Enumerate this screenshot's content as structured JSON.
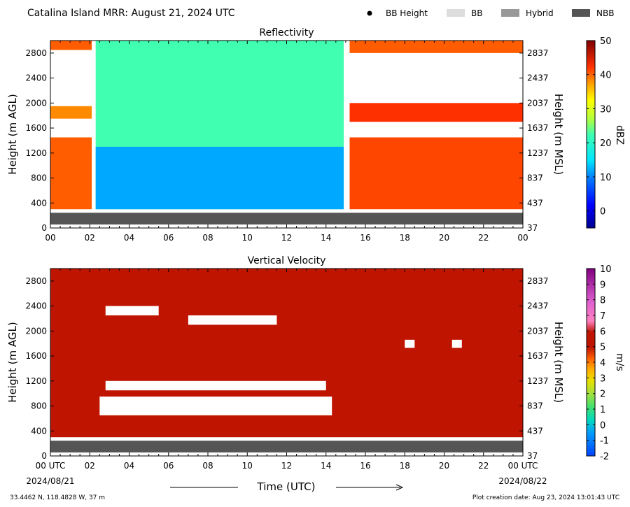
{
  "header": {
    "title": "Catalina Island MRR:  August 21, 2024 UTC",
    "legend": [
      {
        "name": "BB Height",
        "marker": "dot",
        "color": "#000000"
      },
      {
        "name": "BB",
        "marker": "swatch",
        "color": "#dddddd"
      },
      {
        "name": "Hybrid",
        "marker": "swatch",
        "color": "#999999"
      },
      {
        "name": "NBB",
        "marker": "swatch",
        "color": "#555555"
      }
    ]
  },
  "footer": {
    "coords": "33.4462 N, 118.4828 W, 37 m",
    "creation": "Plot creation date: Aug 23, 2024 13:01:43 UTC",
    "start_date": "2024/08/21",
    "end_date": "2024/08/22",
    "xlabel": "Time (UTC)"
  },
  "colors": {
    "nbb_band": "#555555",
    "vv_fill": "#bf1400"
  },
  "chart_data": [
    {
      "type": "heatmap",
      "title": "Reflectivity",
      "xlabel": "Time (UTC)",
      "ylabel": "Height (m AGL)",
      "ylabel_right": "Height (m MSL)",
      "xlim": [
        0,
        24
      ],
      "ylim": [
        0,
        3000
      ],
      "xticks": [
        "00",
        "02",
        "04",
        "06",
        "08",
        "10",
        "12",
        "14",
        "16",
        "18",
        "20",
        "22",
        "00"
      ],
      "yticks": [
        0,
        400,
        800,
        1200,
        1600,
        2000,
        2400,
        2800
      ],
      "yticks_right": [
        37,
        437,
        837,
        1237,
        1637,
        2037,
        2437,
        2837
      ],
      "colorbar": {
        "label": "dBZ",
        "min": -5,
        "max": 50,
        "ticks": [
          0,
          10,
          20,
          30,
          40,
          50
        ]
      },
      "bright_band_type": "NBB",
      "bright_band_height_range": [
        0,
        300
      ],
      "regions": [
        {
          "t": [
            0,
            2.1
          ],
          "z": [
            300,
            1450
          ],
          "dbz": 40
        },
        {
          "t": [
            0,
            2.1
          ],
          "z": [
            1750,
            1950
          ],
          "dbz": 38
        },
        {
          "t": [
            0,
            2.1
          ],
          "z": [
            2850,
            3000
          ],
          "dbz": 40
        },
        {
          "t": [
            2.3,
            14.9
          ],
          "z": [
            300,
            3000
          ],
          "dbz": 22
        },
        {
          "t": [
            2.3,
            14.9
          ],
          "z": [
            300,
            1300
          ],
          "dbz": 12
        },
        {
          "t": [
            15.2,
            24
          ],
          "z": [
            300,
            1450
          ],
          "dbz": 41
        },
        {
          "t": [
            15.2,
            24
          ],
          "z": [
            1700,
            2000
          ],
          "dbz": 42
        },
        {
          "t": [
            15.2,
            24
          ],
          "z": [
            2800,
            3000
          ],
          "dbz": 40
        }
      ]
    },
    {
      "type": "heatmap",
      "title": "Vertical Velocity",
      "xlabel": "Time (UTC)",
      "ylabel": "Height (m AGL)",
      "ylabel_right": "Height (m MSL)",
      "xlim": [
        0,
        24
      ],
      "ylim": [
        0,
        3000
      ],
      "xticks": [
        "00 UTC",
        "02",
        "04",
        "06",
        "08",
        "10",
        "12",
        "14",
        "16",
        "18",
        "20",
        "22",
        "00 UTC"
      ],
      "yticks": [
        0,
        400,
        800,
        1200,
        1600,
        2000,
        2400,
        2800
      ],
      "yticks_right": [
        37,
        437,
        837,
        1237,
        1637,
        2037,
        2437,
        2837
      ],
      "colorbar": {
        "label": "m/s",
        "min": -2,
        "max": 10,
        "ticks": [
          -2,
          -1,
          0,
          1,
          2,
          3,
          4,
          5,
          6,
          7,
          8,
          9,
          10
        ]
      },
      "bright_band_type": "NBB",
      "bright_band_height_range": [
        0,
        300
      ],
      "dominant_value_ms": 6,
      "gaps": [
        {
          "t": [
            2.8,
            5.5
          ],
          "z": [
            2250,
            2400
          ]
        },
        {
          "t": [
            7,
            11.5
          ],
          "z": [
            2100,
            2250
          ]
        },
        {
          "t": [
            2.8,
            14
          ],
          "z": [
            1050,
            1200
          ]
        },
        {
          "t": [
            2.5,
            14.3
          ],
          "z": [
            650,
            950
          ]
        },
        {
          "t": [
            18,
            18.5
          ],
          "z": [
            1730,
            1860
          ]
        },
        {
          "t": [
            20.4,
            20.9
          ],
          "z": [
            1730,
            1860
          ]
        }
      ]
    }
  ]
}
